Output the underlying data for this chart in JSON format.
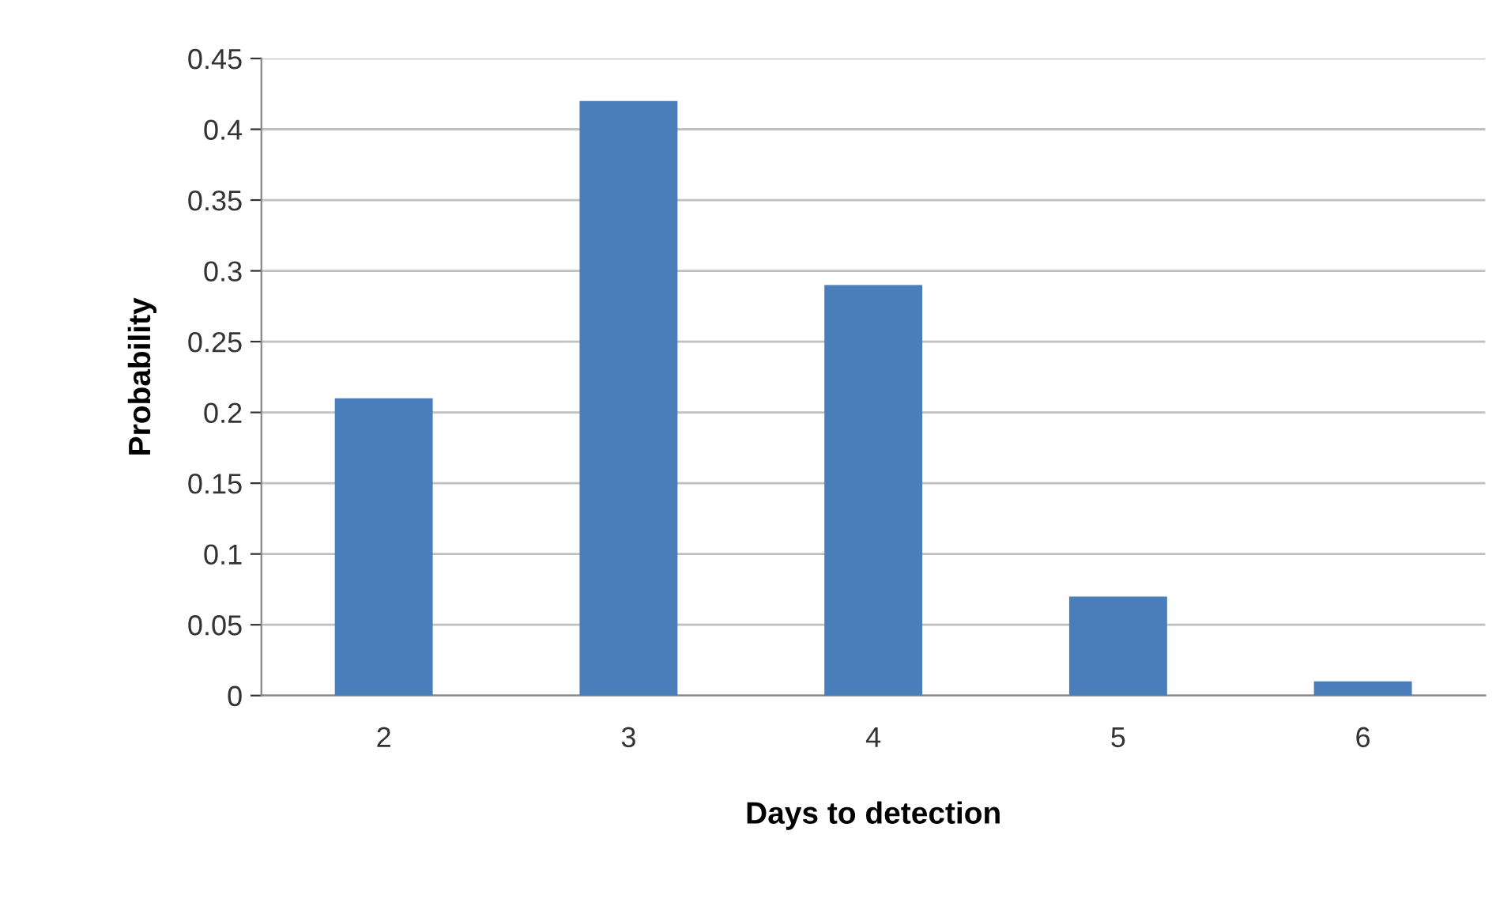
{
  "chart_data": {
    "type": "bar",
    "xlabel": "Days to detection",
    "ylabel": "Probability",
    "categories": [
      "2",
      "3",
      "4",
      "5",
      "6"
    ],
    "values": [
      0.21,
      0.42,
      0.29,
      0.07,
      0.01
    ],
    "color": "#4a7ebb",
    "ylim": [
      0,
      0.45
    ],
    "yticks": [
      0,
      0.05,
      0.1,
      0.15,
      0.2,
      0.25,
      0.3,
      0.35,
      0.4,
      0.45
    ],
    "grid": "y"
  }
}
